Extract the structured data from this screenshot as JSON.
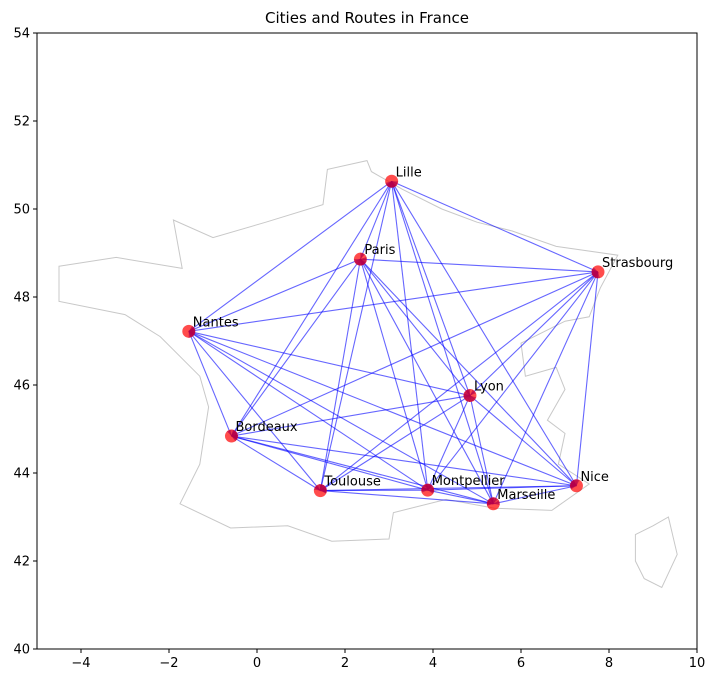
{
  "chart_data": {
    "type": "scatter",
    "title": "Cities and Routes in France",
    "xlabel": "",
    "ylabel": "",
    "xlim": [
      -5,
      10
    ],
    "ylim": [
      40,
      54
    ],
    "xticks": [
      -4,
      -2,
      0,
      2,
      4,
      6,
      8,
      10
    ],
    "yticks": [
      40,
      42,
      44,
      46,
      48,
      50,
      52,
      54
    ],
    "grid": false,
    "colors": {
      "city": "#ff0000",
      "route": "#0000ff",
      "border": "#c8c8c8"
    },
    "cities": [
      {
        "name": "Lille",
        "lon": 3.06,
        "lat": 50.63
      },
      {
        "name": "Paris",
        "lon": 2.35,
        "lat": 48.86
      },
      {
        "name": "Strasbourg",
        "lon": 7.75,
        "lat": 48.57
      },
      {
        "name": "Nantes",
        "lon": -1.55,
        "lat": 47.22
      },
      {
        "name": "Lyon",
        "lon": 4.84,
        "lat": 45.76
      },
      {
        "name": "Bordeaux",
        "lon": -0.58,
        "lat": 44.84
      },
      {
        "name": "Nice",
        "lon": 7.26,
        "lat": 43.71
      },
      {
        "name": "Montpellier",
        "lon": 3.88,
        "lat": 43.61
      },
      {
        "name": "Toulouse",
        "lon": 1.44,
        "lat": 43.6
      },
      {
        "name": "Marseille",
        "lon": 5.37,
        "lat": 43.3
      }
    ],
    "routes": "all city pairs connected (complete graph)",
    "border_outline": [
      [
        -4.5,
        48.7
      ],
      [
        -3.2,
        48.9
      ],
      [
        -1.7,
        48.65
      ],
      [
        -1.9,
        49.75
      ],
      [
        -1.0,
        49.35
      ],
      [
        0.2,
        49.7
      ],
      [
        1.5,
        50.1
      ],
      [
        1.6,
        50.9
      ],
      [
        2.5,
        51.1
      ],
      [
        2.6,
        50.85
      ],
      [
        3.3,
        50.45
      ],
      [
        4.2,
        50.0
      ],
      [
        5.0,
        49.7
      ],
      [
        5.8,
        49.5
      ],
      [
        6.8,
        49.15
      ],
      [
        8.2,
        48.95
      ],
      [
        7.8,
        48.2
      ],
      [
        7.55,
        47.55
      ],
      [
        7.0,
        47.45
      ],
      [
        6.0,
        46.95
      ],
      [
        6.1,
        46.2
      ],
      [
        6.8,
        46.4
      ],
      [
        7.0,
        45.9
      ],
      [
        6.6,
        45.2
      ],
      [
        7.0,
        44.9
      ],
      [
        6.85,
        44.2
      ],
      [
        7.55,
        43.75
      ],
      [
        6.7,
        43.15
      ],
      [
        5.4,
        43.2
      ],
      [
        4.3,
        43.4
      ],
      [
        3.1,
        43.1
      ],
      [
        3.0,
        42.5
      ],
      [
        1.7,
        42.45
      ],
      [
        0.7,
        42.8
      ],
      [
        -0.6,
        42.75
      ],
      [
        -1.75,
        43.3
      ],
      [
        -1.3,
        44.2
      ],
      [
        -1.1,
        45.5
      ],
      [
        -1.3,
        46.2
      ],
      [
        -2.2,
        47.1
      ],
      [
        -3.0,
        47.6
      ],
      [
        -4.5,
        47.9
      ]
    ],
    "corsica_outline": [
      [
        8.6,
        42.6
      ],
      [
        9.0,
        42.8
      ],
      [
        9.35,
        43.0
      ],
      [
        9.55,
        42.15
      ],
      [
        9.2,
        41.4
      ],
      [
        8.8,
        41.6
      ],
      [
        8.6,
        42.0
      ]
    ]
  }
}
